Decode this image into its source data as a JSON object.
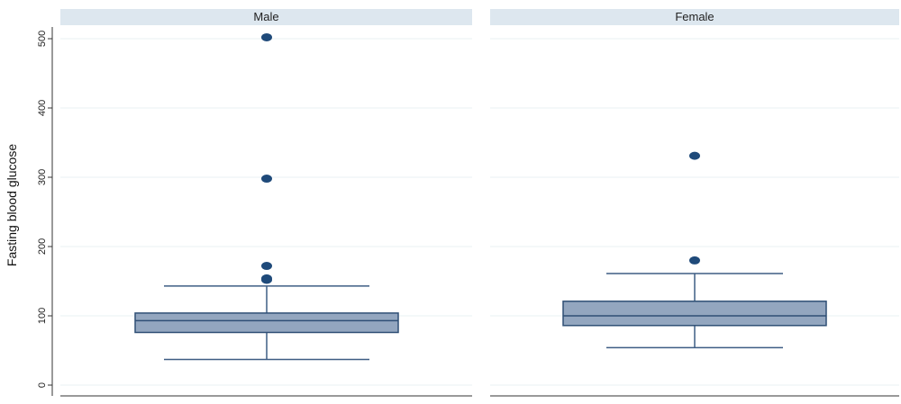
{
  "chart_data": {
    "type": "box",
    "ylabel": "Fasting blood glucose",
    "ylim": [
      0,
      510
    ],
    "yticks": [
      0,
      100,
      200,
      300,
      400,
      500
    ],
    "grid": true,
    "panels": [
      {
        "title": "Male",
        "whisker_low": 37,
        "q1": 76,
        "median": 93,
        "q3": 104,
        "whisker_high": 143,
        "outliers": [
          152,
          154,
          172,
          298,
          502
        ]
      },
      {
        "title": "Female",
        "whisker_low": 54,
        "q1": 86,
        "median": 100,
        "q3": 121,
        "whisker_high": 161,
        "outliers": [
          180,
          331
        ]
      }
    ],
    "colors": {
      "box_fill": "#93a6bf",
      "box_stroke": "#2f4f75",
      "whisker": "#3e5d84",
      "outlier": "#1f4a7a",
      "strip_fill": "#dde7ef",
      "grid": "#eaf0f3"
    }
  }
}
